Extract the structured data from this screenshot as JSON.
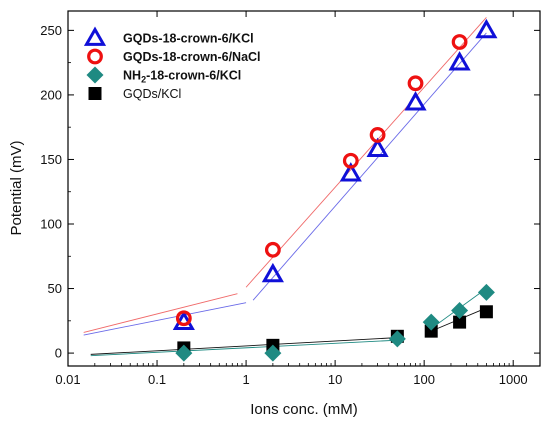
{
  "chart_data": {
    "type": "scatter",
    "xlabel": "Ions conc. (mM)",
    "ylabel": "Potential (mV)",
    "xscale": "log",
    "xlim": [
      0.01,
      2000
    ],
    "ylim": [
      -10,
      265
    ],
    "x_ticks": [
      0.01,
      0.1,
      1,
      10,
      100,
      1000
    ],
    "x_tick_labels": [
      "0.01",
      "0.1",
      "1",
      "10",
      "100",
      "1000"
    ],
    "y_ticks": [
      0,
      50,
      100,
      150,
      200,
      250
    ],
    "y_tick_labels": [
      "0",
      "50",
      "100",
      "150",
      "200",
      "250"
    ],
    "legend_position": "top-left",
    "series": [
      {
        "name": "GQDs-18-crown-6/KCl",
        "marker": "open-triangle",
        "color": "#1010d8",
        "x": [
          0.2,
          2,
          15,
          30,
          80,
          250,
          500
        ],
        "y": [
          24,
          61,
          139,
          158,
          194,
          225,
          250
        ],
        "fit": [
          [
            0.015,
            14
          ],
          [
            1,
            39
          ],
          [
            1.2,
            41
          ],
          [
            500,
            248
          ]
        ]
      },
      {
        "name": "GQDs-18-crown-6/NaCl",
        "marker": "open-circle",
        "color": "#ee1111",
        "x": [
          0.2,
          2,
          15,
          30,
          80,
          250
        ],
        "y": [
          27,
          80,
          149,
          169,
          209,
          241
        ],
        "fit": [
          [
            0.015,
            16
          ],
          [
            0.8,
            46
          ],
          [
            1,
            51
          ],
          [
            500,
            260
          ]
        ]
      },
      {
        "name": "NH2-18-crown-6/KCl",
        "name_display": [
          "NH",
          "2",
          "-18-crown-6/KCl"
        ],
        "marker": "filled-diamond",
        "color": "#1f8a82",
        "x": [
          0.2,
          2,
          50,
          120,
          250,
          500
        ],
        "y": [
          0,
          0,
          11,
          24,
          33,
          47
        ],
        "fit": [
          [
            0.018,
            -2
          ],
          [
            50,
            10
          ],
          [
            120,
            19
          ],
          [
            500,
            50
          ]
        ]
      },
      {
        "name": "GQDs/KCl",
        "marker": "filled-square",
        "color": "#000000",
        "x": [
          0.2,
          2,
          50,
          120,
          250,
          500
        ],
        "y": [
          4,
          6,
          13,
          17,
          24,
          32
        ],
        "fit": [
          [
            0.018,
            -1
          ],
          [
            50,
            12
          ],
          [
            120,
            17
          ],
          [
            500,
            35
          ]
        ]
      }
    ]
  }
}
